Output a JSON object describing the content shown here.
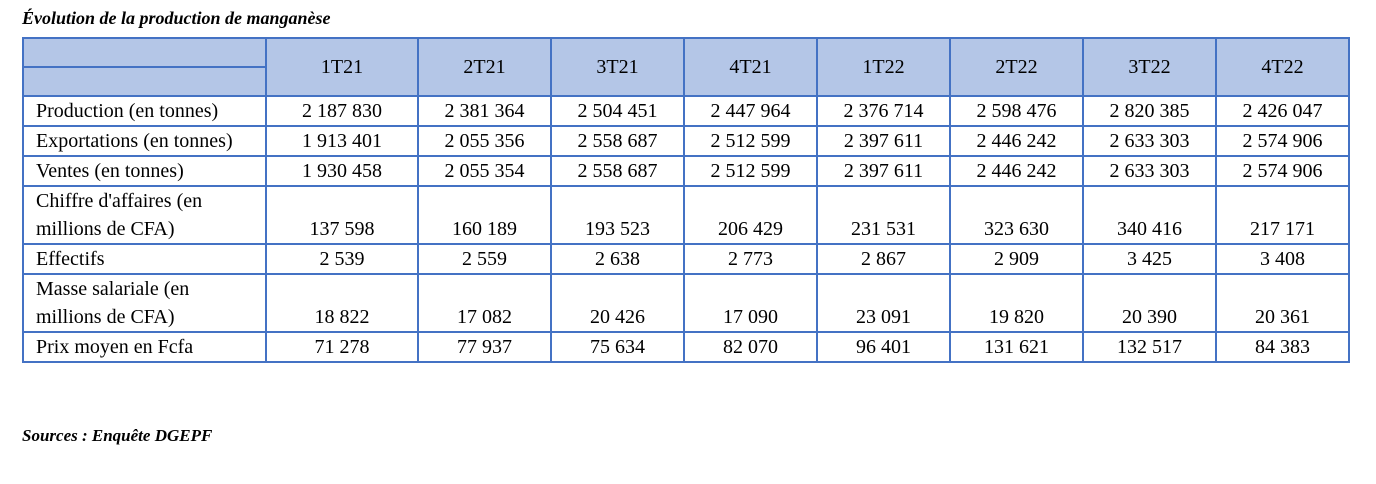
{
  "title": "Évolution de la production de manganèse",
  "table": {
    "header": [
      "1T21",
      "2T21",
      "3T21",
      "4T21",
      "1T22",
      "2T22",
      "3T22",
      "4T22"
    ],
    "rows": [
      {
        "label": "Production (en tonnes)",
        "values": [
          "2 187 830",
          "2 381 364",
          "2 504 451",
          "2 447 964",
          "2 376 714",
          "2 598 476",
          "2 820 385",
          "2 426 047"
        ]
      },
      {
        "label": "Exportations (en tonnes)",
        "values": [
          "1 913 401",
          "2 055 356",
          "2 558 687",
          "2 512 599",
          "2 397 611",
          "2 446 242",
          "2 633 303",
          "2 574 906"
        ]
      },
      {
        "label": "Ventes (en tonnes)",
        "values": [
          "1 930 458",
          "2 055 354",
          "2 558 687",
          "2 512 599",
          "2 397 611",
          "2 446 242",
          "2 633 303",
          "2 574 906"
        ]
      },
      {
        "label": "Chiffre d'affaires (en millions de CFA)",
        "values": [
          "137 598",
          "160 189",
          "193 523",
          "206 429",
          "231 531",
          "323 630",
          "340 416",
          "217 171"
        ]
      },
      {
        "label": "Effectifs",
        "values": [
          "2 539",
          "2 559",
          "2 638",
          "2 773",
          "2 867",
          "2 909",
          "3 425",
          "3 408"
        ]
      },
      {
        "label": "Masse salariale (en millions de CFA)",
        "values": [
          "18 822",
          "17 082",
          "20 426",
          "17 090",
          "23 091",
          "19 820",
          "20 390",
          "20 361"
        ]
      },
      {
        "label": "Prix moyen en Fcfa",
        "values": [
          "71 278",
          "77 937",
          "75 634",
          "82 070",
          "96 401",
          "131 621",
          "132 517",
          "84 383"
        ]
      }
    ]
  },
  "source": "Sources : Enquête DGEPF"
}
